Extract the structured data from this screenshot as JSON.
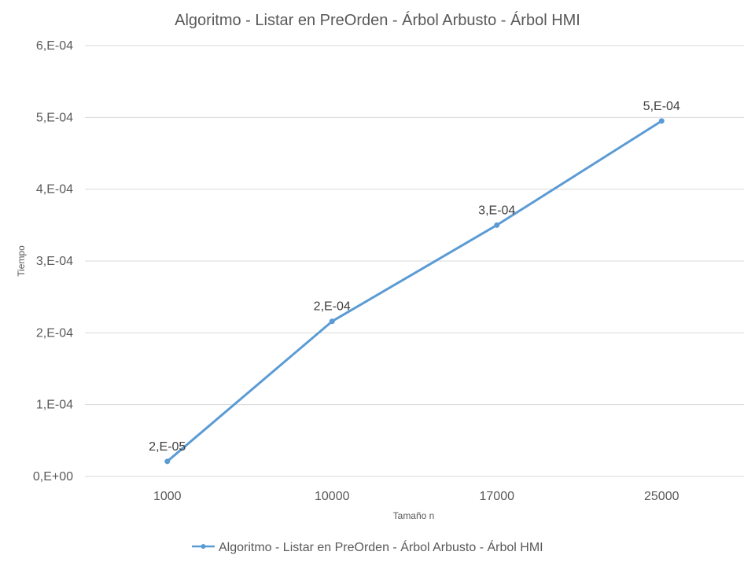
{
  "chart_data": {
    "type": "line",
    "title": "Algoritmo - Listar en PreOrden - Árbol Arbusto - Árbol HMI",
    "xlabel": "Tamaño n",
    "ylabel": "Tiempo",
    "categories": [
      "1000",
      "10000",
      "17000",
      "25000"
    ],
    "ylim": [
      0,
      0.0006
    ],
    "yticks": [
      {
        "value": 0,
        "label": "0,E+00"
      },
      {
        "value": 0.0001,
        "label": "1,E-04"
      },
      {
        "value": 0.0002,
        "label": "2,E-04"
      },
      {
        "value": 0.0003,
        "label": "3,E-04"
      },
      {
        "value": 0.0004,
        "label": "4,E-04"
      },
      {
        "value": 0.0005,
        "label": "5,E-04"
      },
      {
        "value": 0.0006,
        "label": "6,E-04"
      }
    ],
    "grid": true,
    "legend_position": "bottom",
    "series": [
      {
        "name": "Algoritmo - Listar en PreOrden - Árbol Arbusto - Árbol HMI",
        "color": "#5b9bd5",
        "values": [
          2.1e-05,
          0.000216,
          0.00035,
          0.000495
        ],
        "data_labels": [
          "2,E-05",
          "2,E-04",
          "3,E-04",
          "5,E-04"
        ]
      }
    ]
  }
}
